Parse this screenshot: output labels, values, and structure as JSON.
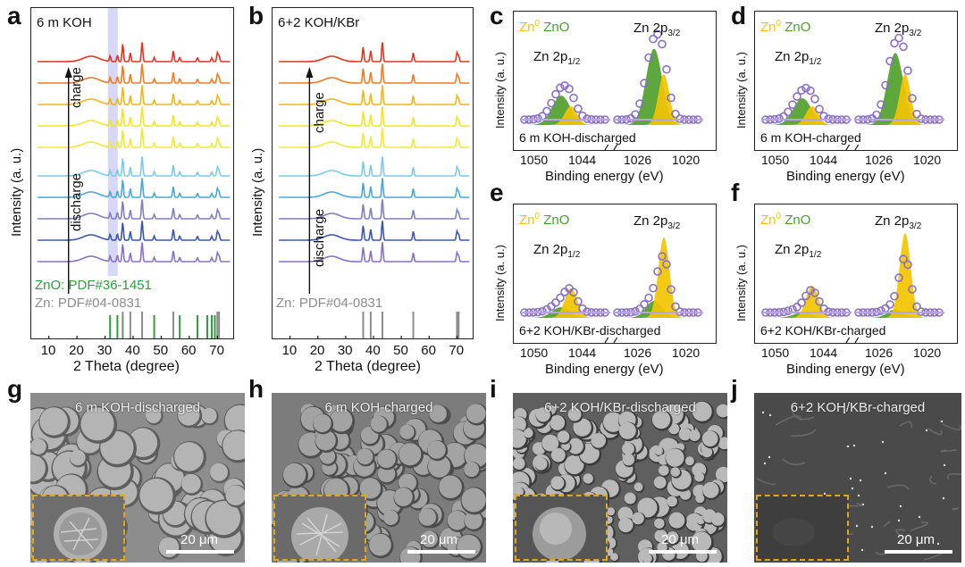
{
  "panel_labels": {
    "a": "a",
    "b": "b",
    "c": "c",
    "d": "d",
    "e": "e",
    "f": "f",
    "g": "g",
    "h": "h",
    "i": "i",
    "j": "j"
  },
  "colors": {
    "zn0": "#f2c400",
    "zno": "#4fa02c",
    "zno_ref": "#2f9e3a",
    "zn_ref": "#8c8c8c",
    "fit": "#b9a3e8",
    "scan_band": "#b6b7ef",
    "inset_border": "#e0a81a"
  },
  "xrd": {
    "a": {
      "title": "6 m KOH",
      "ylabel": "Intensity (a. u.)",
      "xlabel": "2 Theta (degree)",
      "xticks": [
        "10",
        "20",
        "30",
        "40",
        "50",
        "60",
        "70"
      ],
      "charge_label": "charge",
      "discharge_label": "discharge",
      "zno_ref_label": "ZnO: PDF#36-1451",
      "zn_ref_label": "Zn: PDF#04-0831"
    },
    "b": {
      "title": "6+2 KOH/KBr",
      "ylabel": "Intensity (a. u.)",
      "xlabel": "2 Theta (degree)",
      "xticks": [
        "10",
        "20",
        "30",
        "40",
        "50",
        "60",
        "70"
      ],
      "charge_label": "charge",
      "discharge_label": "discharge",
      "zn_ref_label": "Zn: PDF#04-0831"
    }
  },
  "xps": {
    "c": {
      "zn0": "Zn",
      "zn0_sup": "0",
      "zno": "ZnO",
      "peak1": "Zn 2p",
      "peak1_sub": "1/2",
      "peak2": "Zn 2p",
      "peak2_sub": "3/2",
      "sample": "6 m KOH-discharged",
      "ylabel": "Intensity (a. u.)",
      "xlabel": "Binding energy (eV)",
      "xticks_left": [
        "1050",
        "1044"
      ],
      "xticks_right": [
        "1026",
        "1020"
      ]
    },
    "d": {
      "zn0": "Zn",
      "zn0_sup": "0",
      "zno": "ZnO",
      "peak1": "Zn 2p",
      "peak1_sub": "1/2",
      "peak2": "Zn 2p",
      "peak2_sub": "3/2",
      "sample": "6 m KOH-charged",
      "ylabel": "Intensity (a. u.)",
      "xlabel": "Binding energy (eV)",
      "xticks_left": [
        "1050",
        "1044"
      ],
      "xticks_right": [
        "1026",
        "1020"
      ]
    },
    "e": {
      "zn0": "Zn",
      "zn0_sup": "0",
      "zno": "ZnO",
      "peak1": "Zn 2p",
      "peak1_sub": "1/2",
      "peak2": "Zn 2p",
      "peak2_sub": "3/2",
      "sample": "6+2 KOH/KBr-discharged",
      "ylabel": "Intensity (a. u.)",
      "xlabel": "Binding energy (eV)",
      "xticks_left": [
        "1050",
        "1044"
      ],
      "xticks_right": [
        "1026",
        "1020"
      ]
    },
    "f": {
      "zn0": "Zn",
      "zn0_sup": "0",
      "zno": "ZnO",
      "peak1": "Zn 2p",
      "peak1_sub": "1/2",
      "peak2": "Zn 2p",
      "peak2_sub": "3/2",
      "sample": "6+2 KOH/KBr-charged",
      "ylabel": "Intensity (a. u.)",
      "xlabel": "Binding energy (eV)",
      "xticks_left": [
        "1050",
        "1044"
      ],
      "xticks_right": [
        "1026",
        "1020"
      ]
    }
  },
  "sem": {
    "g": {
      "title": "6 m KOH-discharged",
      "scale": "20 μm"
    },
    "h": {
      "title": "6 m KOH-charged",
      "scale": "20 μm"
    },
    "i": {
      "title": "6+2 KOH/KBr-discharged",
      "scale": "20 μm"
    },
    "j": {
      "title": "6+2 KOH/KBr-charged",
      "scale": "20 μm"
    }
  },
  "chart_data": [
    {
      "type": "line",
      "panel": "a",
      "title": "6 m KOH",
      "xlabel": "2 Theta (degree)",
      "ylabel": "Intensity (a. u.)",
      "xlim": [
        5,
        75
      ],
      "series_colors": [
        "#e8321e",
        "#f07a1f",
        "#f4b417",
        "#f2e51f",
        "#f1e933",
        "#79cbe9",
        "#46a9d9",
        "#7f7fc6",
        "#3b56b0",
        "#8a6fc9"
      ],
      "peaks": [
        {
          "x": 31.8,
          "h": 0.28
        },
        {
          "x": 34.4,
          "h": 0.32
        },
        {
          "x": 36.3,
          "h": 0.9
        },
        {
          "x": 39.0,
          "h": 0.45
        },
        {
          "x": 43.2,
          "h": 1.0
        },
        {
          "x": 47.5,
          "h": 0.22
        },
        {
          "x": 54.3,
          "h": 0.55
        },
        {
          "x": 56.6,
          "h": 0.22
        },
        {
          "x": 62.9,
          "h": 0.2
        },
        {
          "x": 68.0,
          "h": 0.2
        },
        {
          "x": 70.0,
          "h": 0.45
        },
        {
          "x": 70.6,
          "h": 0.3
        }
      ],
      "zno_ref": [
        31.8,
        34.4,
        36.3,
        47.5,
        56.6,
        62.9,
        66.4,
        68.0,
        69.1
      ],
      "zn_ref": [
        36.3,
        39.0,
        43.2,
        54.3,
        70.0,
        70.6
      ]
    },
    {
      "type": "line",
      "panel": "b",
      "title": "6+2 KOH/KBr",
      "xlabel": "2 Theta (degree)",
      "ylabel": "Intensity (a. u.)",
      "xlim": [
        5,
        75
      ],
      "series_colors": [
        "#e8321e",
        "#f07a1f",
        "#f4b417",
        "#f2e51f",
        "#f1e933",
        "#79cbe9",
        "#46a9d9",
        "#7f7fc6",
        "#3b56b0",
        "#8a6fc9"
      ],
      "peaks": [
        {
          "x": 36.3,
          "h": 0.75
        },
        {
          "x": 39.0,
          "h": 0.55
        },
        {
          "x": 43.2,
          "h": 1.0
        },
        {
          "x": 54.3,
          "h": 0.45
        },
        {
          "x": 70.0,
          "h": 0.45
        },
        {
          "x": 70.6,
          "h": 0.3
        }
      ],
      "zn_ref": [
        36.3,
        39.0,
        43.2,
        54.3,
        70.0,
        70.6
      ]
    },
    {
      "type": "line",
      "panel": "c",
      "xlabel": "Binding energy (eV)",
      "ylabel": "Intensity (a. u.)",
      "peaks": [
        {
          "x": 1045,
          "zn0": 0.35,
          "zno": 0.55
        },
        {
          "x": 1022,
          "zn0": 0.6,
          "zno": 0.9
        }
      ]
    },
    {
      "type": "line",
      "panel": "d",
      "xlabel": "Binding energy (eV)",
      "ylabel": "Intensity (a. u.)",
      "peaks": [
        {
          "x": 1045,
          "zn0": 0.35,
          "zno": 0.5
        },
        {
          "x": 1022,
          "zn0": 0.6,
          "zno": 0.85
        }
      ]
    },
    {
      "type": "line",
      "panel": "e",
      "xlabel": "Binding energy (eV)",
      "ylabel": "Intensity (a. u.)",
      "peaks": [
        {
          "x": 1045,
          "zn0": 0.55,
          "zno": 0.2
        },
        {
          "x": 1022,
          "zn0": 0.95,
          "zno": 0.2
        }
      ]
    },
    {
      "type": "line",
      "panel": "f",
      "xlabel": "Binding energy (eV)",
      "ylabel": "Intensity (a. u.)",
      "peaks": [
        {
          "x": 1045,
          "zn0": 0.6,
          "zno": 0.1
        },
        {
          "x": 1022,
          "zn0": 1.0,
          "zno": 0.1
        }
      ]
    }
  ]
}
